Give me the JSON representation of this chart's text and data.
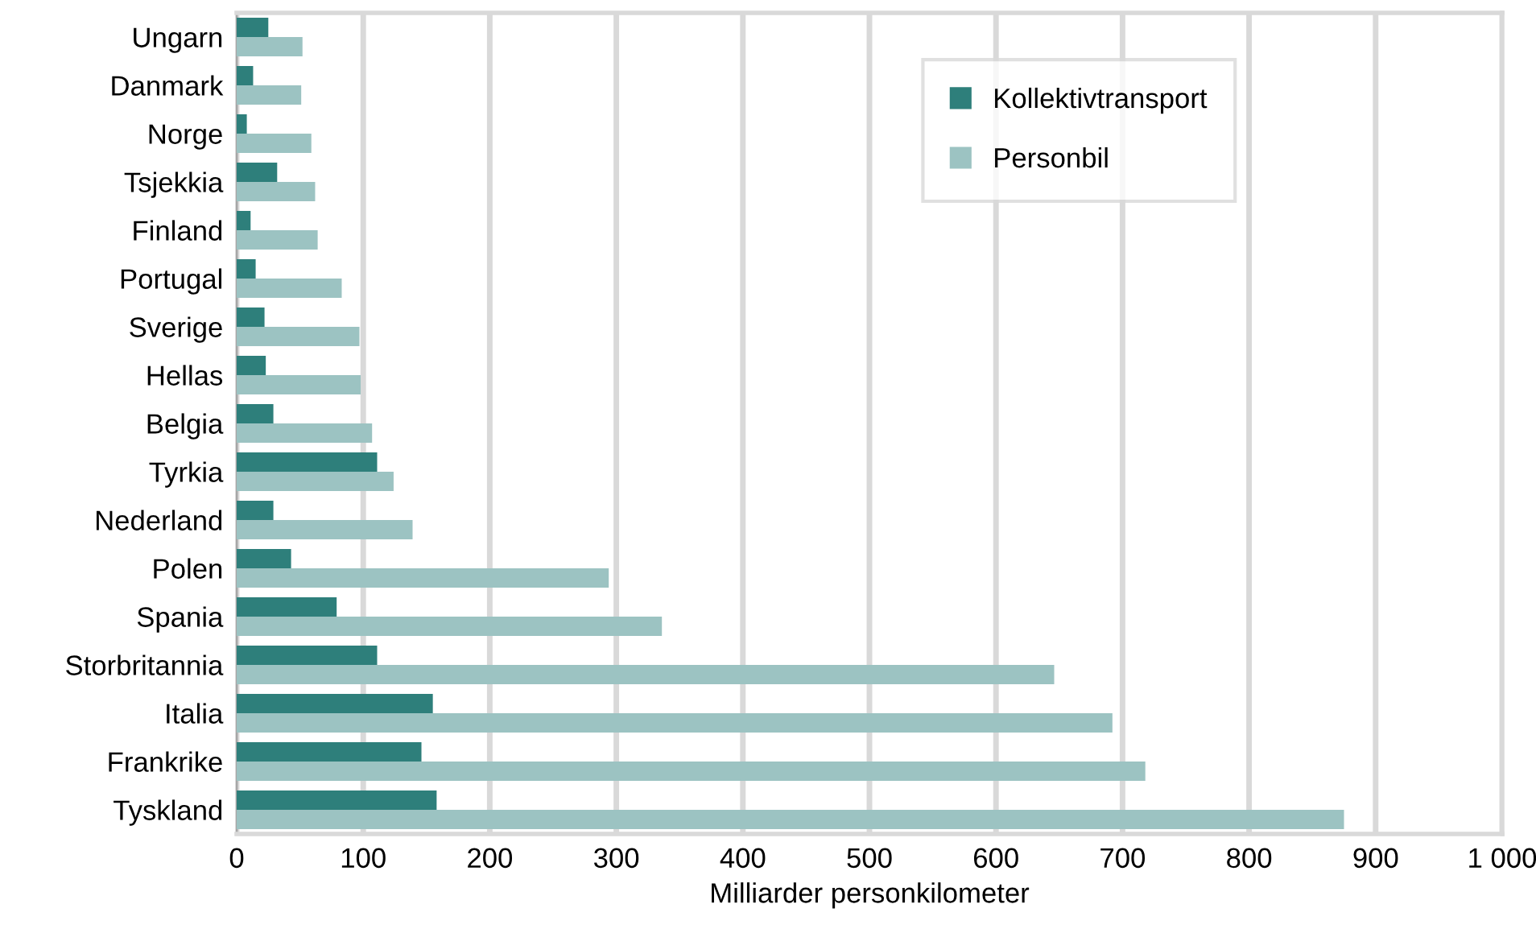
{
  "chart_data": {
    "type": "bar",
    "orientation": "horizontal",
    "categories": [
      "Ungarn",
      "Danmark",
      "Norge",
      "Tsjekkia",
      "Finland",
      "Portugal",
      "Sverige",
      "Hellas",
      "Belgia",
      "Tyrkia",
      "Nederland",
      "Polen",
      "Spania",
      "Storbritannia",
      "Italia",
      "Frankrike",
      "Tyskland"
    ],
    "series": [
      {
        "name": "Kollektivtransport",
        "color": "#2e7f7b",
        "values": [
          25,
          13,
          8,
          32,
          11,
          15,
          22,
          23,
          29,
          111,
          29,
          43,
          79,
          111,
          155,
          146,
          158
        ]
      },
      {
        "name": "Personbil",
        "color": "#9cc3c2",
        "values": [
          52,
          51,
          59,
          62,
          64,
          83,
          97,
          98,
          107,
          124,
          139,
          294,
          336,
          646,
          692,
          718,
          875
        ]
      }
    ],
    "xlabel": "Milliarder personkilometer",
    "xlim": [
      0,
      1000
    ],
    "xticks": [
      0,
      100,
      200,
      300,
      400,
      500,
      600,
      700,
      800,
      900,
      {
        "value": 1000,
        "label": "1 000"
      }
    ],
    "grid": "x",
    "legend": "top right"
  }
}
